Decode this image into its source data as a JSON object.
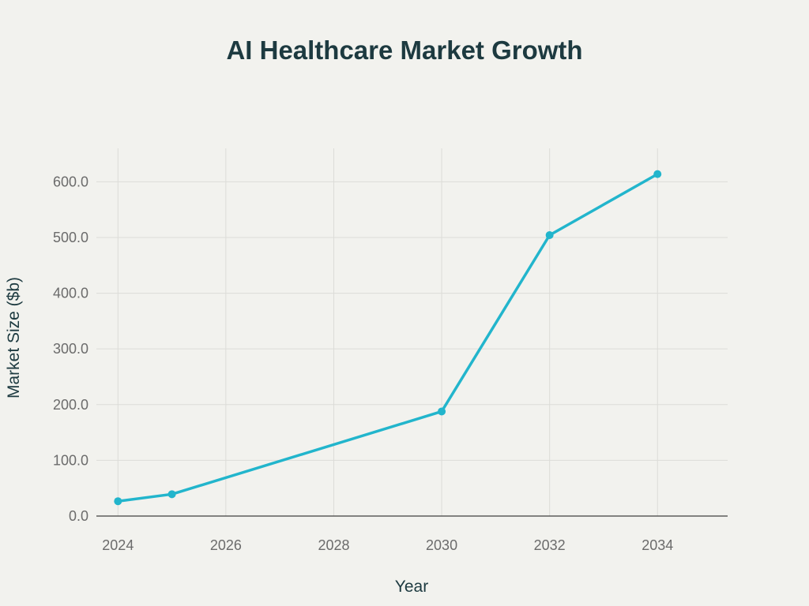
{
  "chart_data": {
    "type": "line",
    "title": "AI Healthcare Market Growth",
    "xlabel": "Year",
    "ylabel": "Market Size ($b)",
    "xlim": [
      2023.6,
      2035.3
    ],
    "ylim": [
      0,
      660
    ],
    "x_ticks": [
      2024,
      2026,
      2028,
      2030,
      2032,
      2034
    ],
    "x_tick_labels": [
      "2024",
      "2026",
      "2028",
      "2030",
      "2032",
      "2034"
    ],
    "y_ticks": [
      0,
      100,
      200,
      300,
      400,
      500,
      600
    ],
    "y_tick_labels": [
      "0.0",
      "100.0",
      "200.0",
      "300.0",
      "400.0",
      "500.0",
      "600.0"
    ],
    "grid": true,
    "legend": "none",
    "series": [
      {
        "color": "#22b5cc",
        "points": [
          {
            "x": 2024,
            "y": 26.6
          },
          {
            "x": 2025,
            "y": 39.2
          },
          {
            "x": 2030,
            "y": 187.7
          },
          {
            "x": 2032,
            "y": 504.2
          },
          {
            "x": 2034,
            "y": 613.8
          }
        ]
      }
    ]
  }
}
